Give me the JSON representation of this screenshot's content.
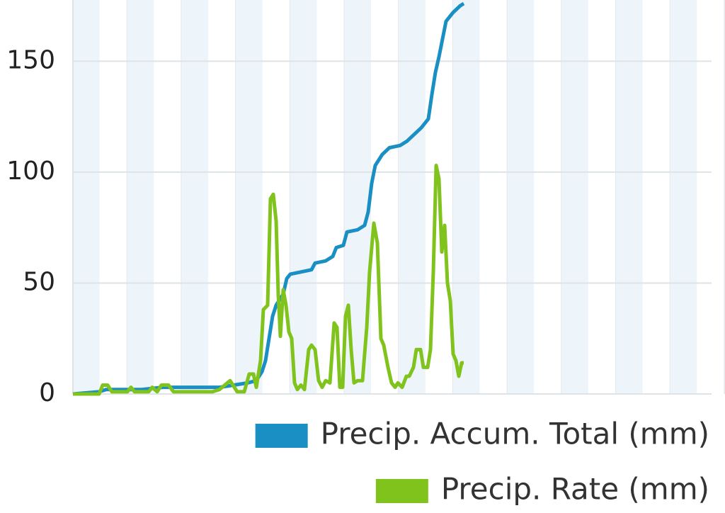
{
  "chart_data": {
    "type": "line",
    "xlim": [
      103,
      1005
    ],
    "ylim": [
      0,
      176
    ],
    "yticks": [
      0,
      50,
      100,
      150
    ],
    "grid": true,
    "legend": "bottom-right",
    "series": [
      {
        "name": "Precip. Accum. Total (mm)",
        "color": "#1a8fc4",
        "x": [
          103,
          140,
          150,
          200,
          230,
          310,
          330,
          350,
          362,
          370,
          375,
          380,
          385,
          390,
          400,
          405,
          410,
          425,
          440,
          445,
          460,
          470,
          475,
          485,
          490,
          505,
          515,
          520,
          525,
          530,
          540,
          550,
          565,
          575,
          585,
          595,
          605,
          610,
          615,
          620,
          625,
          630,
          640,
          650,
          655
        ],
        "values": [
          0,
          1,
          2,
          2,
          3,
          3,
          4,
          5,
          6,
          10,
          15,
          25,
          35,
          40,
          45,
          52,
          54,
          55,
          56,
          59,
          60,
          62,
          66,
          67,
          73,
          74,
          76,
          82,
          95,
          103,
          108,
          111,
          112,
          114,
          117,
          120,
          124,
          135,
          145,
          152,
          160,
          168,
          172,
          175,
          176
        ]
      },
      {
        "name": "Precip. Rate (mm)",
        "color": "#80c31c",
        "x": [
          103,
          140,
          145,
          152,
          158,
          180,
          185,
          190,
          210,
          215,
          222,
          228,
          238,
          245,
          300,
          310,
          325,
          335,
          345,
          352,
          358,
          362,
          368,
          372,
          378,
          382,
          386,
          390,
          393,
          396,
          400,
          404,
          408,
          412,
          416,
          420,
          425,
          430,
          436,
          440,
          445,
          450,
          455,
          460,
          466,
          472,
          476,
          480,
          484,
          488,
          492,
          496,
          500,
          505,
          512,
          518,
          522,
          528,
          533,
          538,
          542,
          548,
          553,
          558,
          562,
          568,
          574,
          578,
          584,
          588,
          594,
          598,
          604,
          608,
          612,
          616,
          620,
          624,
          628,
          632,
          636,
          640,
          644,
          648,
          652,
          655
        ],
        "values": [
          0,
          0,
          4,
          4,
          1,
          1,
          3,
          1,
          1,
          3,
          1,
          4,
          4,
          1,
          1,
          2,
          6,
          1,
          1,
          9,
          9,
          3,
          15,
          38,
          40,
          88,
          90,
          78,
          45,
          26,
          47,
          40,
          28,
          25,
          5,
          2,
          4,
          2,
          20,
          22,
          20,
          6,
          3,
          6,
          5,
          32,
          30,
          3,
          3,
          35,
          40,
          20,
          5,
          6,
          6,
          30,
          55,
          77,
          68,
          25,
          22,
          12,
          5,
          3,
          5,
          3,
          8,
          8,
          12,
          20,
          20,
          12,
          12,
          20,
          55,
          103,
          97,
          64,
          76,
          50,
          42,
          18,
          15,
          8,
          14,
          14
        ]
      }
    ]
  }
}
